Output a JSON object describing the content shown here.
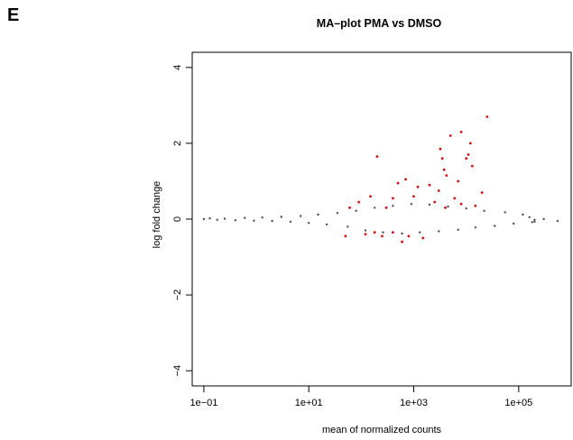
{
  "panel_label": "E",
  "chart_data": {
    "type": "scatter",
    "title": "MA–plot PMA vs DMSO",
    "xlabel": "mean of normalized counts",
    "ylabel": "log fold change",
    "x_scale": "log10",
    "xlim": [
      0.06,
      1000000
    ],
    "ylim": [
      -4.4,
      4.4
    ],
    "x_ticks": [
      0.1,
      10,
      1000,
      100000
    ],
    "x_tick_labels": [
      "1e−01",
      "1e+01",
      "1e+03",
      "1e+05"
    ],
    "y_ticks": [
      -4,
      -2,
      0,
      2,
      4
    ],
    "y_tick_labels": [
      "−4",
      "−2",
      "0",
      "2",
      "4"
    ],
    "grid": false,
    "colors": {
      "background_points": "#4d4d4d",
      "significant_points": "#cc1111"
    },
    "series": [
      {
        "significant": false,
        "points": [
          [
            0.1,
            0.0
          ],
          [
            0.13,
            0.02
          ],
          [
            0.18,
            -0.02
          ],
          [
            0.25,
            0.01
          ],
          [
            0.4,
            -0.03
          ],
          [
            0.6,
            0.03
          ],
          [
            0.9,
            -0.04
          ],
          [
            1.3,
            0.04
          ],
          [
            2.0,
            -0.05
          ],
          [
            3.0,
            0.06
          ],
          [
            4.5,
            -0.07
          ],
          [
            7.0,
            0.08
          ],
          [
            10,
            -0.1
          ],
          [
            15,
            0.12
          ],
          [
            22,
            -0.14
          ],
          [
            35,
            0.16
          ],
          [
            55,
            -0.2
          ],
          [
            80,
            0.22
          ],
          [
            120,
            -0.3
          ],
          [
            180,
            0.3
          ],
          [
            260,
            -0.35
          ],
          [
            400,
            0.35
          ],
          [
            600,
            -0.38
          ],
          [
            900,
            0.4
          ],
          [
            1300,
            -0.35
          ],
          [
            2000,
            0.38
          ],
          [
            3000,
            -0.32
          ],
          [
            4500,
            0.33
          ],
          [
            7000,
            -0.28
          ],
          [
            10000,
            0.28
          ],
          [
            15000,
            -0.22
          ],
          [
            22000,
            0.22
          ],
          [
            35000,
            -0.18
          ],
          [
            55000,
            0.18
          ],
          [
            80000,
            -0.12
          ],
          [
            120000,
            0.12
          ],
          [
            180000,
            -0.08
          ],
          [
            160000,
            0.05
          ],
          [
            200000,
            -0.02
          ],
          [
            300000,
            0.0
          ],
          [
            550000,
            -0.05
          ],
          [
            200000,
            -0.07
          ]
        ]
      },
      {
        "significant": true,
        "points": [
          [
            25000,
            2.7
          ],
          [
            8000,
            2.3
          ],
          [
            5000,
            2.2
          ],
          [
            12000,
            2.0
          ],
          [
            3200,
            1.85
          ],
          [
            11000,
            1.7
          ],
          [
            10000,
            1.6
          ],
          [
            3500,
            1.6
          ],
          [
            200,
            1.65
          ],
          [
            13000,
            1.4
          ],
          [
            3800,
            1.3
          ],
          [
            4200,
            1.15
          ],
          [
            700,
            1.05
          ],
          [
            7000,
            1.0
          ],
          [
            500,
            0.95
          ],
          [
            1200,
            0.85
          ],
          [
            2000,
            0.9
          ],
          [
            3000,
            0.75
          ],
          [
            20000,
            0.7
          ],
          [
            1000,
            0.6
          ],
          [
            150,
            0.6
          ],
          [
            400,
            0.55
          ],
          [
            6000,
            0.55
          ],
          [
            90,
            0.45
          ],
          [
            2500,
            0.45
          ],
          [
            8000,
            0.4
          ],
          [
            15000,
            0.35
          ],
          [
            60,
            0.3
          ],
          [
            300,
            0.3
          ],
          [
            4000,
            0.3
          ],
          [
            180,
            -0.35
          ],
          [
            120,
            -0.4
          ],
          [
            250,
            -0.45
          ],
          [
            600,
            -0.6
          ],
          [
            800,
            -0.45
          ],
          [
            50,
            -0.45
          ],
          [
            400,
            -0.35
          ],
          [
            1500,
            -0.5
          ]
        ]
      }
    ]
  }
}
